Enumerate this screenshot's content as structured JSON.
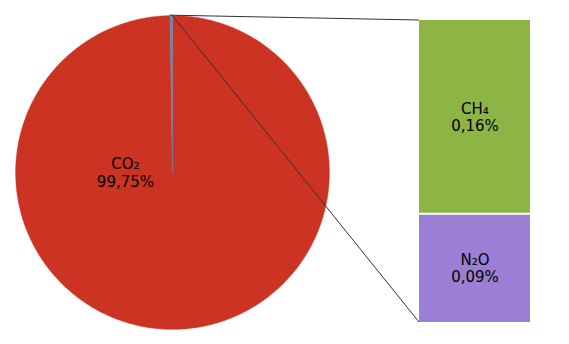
{
  "chart_data": [
    {
      "type": "pie",
      "categories": [
        "CO₂",
        null
      ],
      "values": [
        99.75,
        0.25
      ],
      "value_labels": [
        "99,75%",
        null
      ],
      "colors": [
        "#cc3322",
        "#6688aa"
      ],
      "data_labels": true
    },
    {
      "type": "bar",
      "stacked": true,
      "series": [
        {
          "name": "N₂O",
          "color": "#9b7fd4",
          "values": [
            0.09
          ],
          "value_labels": [
            "0,09%"
          ]
        },
        {
          "name": "CH₄",
          "color": "#8db545",
          "values": [
            0.16
          ],
          "value_labels": [
            "0,16%"
          ]
        }
      ],
      "ylim": [
        0,
        0.25
      ],
      "tick_labels": false,
      "data_labels": true
    }
  ]
}
